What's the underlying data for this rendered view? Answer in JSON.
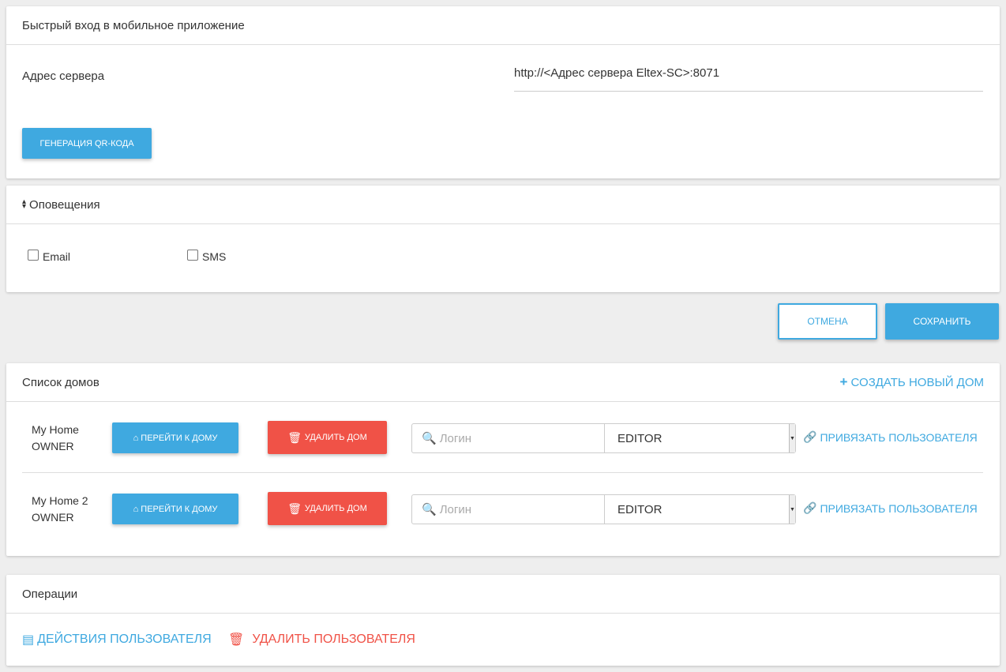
{
  "quick_login": {
    "title": "Быстрый вход в мобильное приложение",
    "server_label": "Адрес сервера",
    "server_value": "http://<Адрес сервера Eltex-SC>:8071",
    "qr_button": "ГЕНЕРАЦИЯ QR-КОДА"
  },
  "notifications": {
    "title": "Оповещения",
    "email": "Email",
    "sms": "SMS",
    "email_checked": false,
    "sms_checked": false
  },
  "actions": {
    "cancel": "ОТМЕНА",
    "save": "СОХРАНИТЬ"
  },
  "houses": {
    "title": "Список домов",
    "create": "СОЗДАТЬ НОВЫЙ ДОМ",
    "items": [
      {
        "name": "My Home",
        "role": "OWNER",
        "go": "ПЕРЕЙТИ К ДОМУ",
        "delete": "УДАЛИТЬ ДОМ",
        "login_placeholder": "Логин",
        "role_select": "EDITOR",
        "bind": "ПРИВЯЗАТЬ ПОЛЬЗОВАТЕЛЯ"
      },
      {
        "name": "My Home 2",
        "role": "OWNER",
        "go": "ПЕРЕЙТИ К ДОМУ",
        "delete": "УДАЛИТЬ ДОМ",
        "login_placeholder": "Логин",
        "role_select": "EDITOR",
        "bind": "ПРИВЯЗАТЬ ПОЛЬЗОВАТЕЛЯ"
      }
    ]
  },
  "operations": {
    "title": "Операции",
    "user_actions": "ДЕЙСТВИЯ ПОЛЬЗОВАТЕЛЯ",
    "delete_user": "УДАЛИТЬ ПОЛЬЗОВАТЕЛЯ"
  },
  "colors": {
    "primary": "#3fa9e0",
    "danger": "#f05247"
  }
}
